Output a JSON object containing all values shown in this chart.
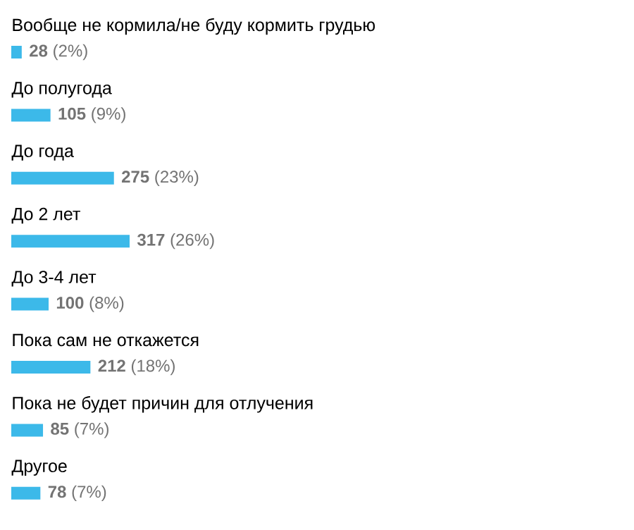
{
  "chart_data": {
    "type": "bar",
    "orientation": "horizontal",
    "color": "#3cb9e9",
    "categories": [
      "Вообще не кормила/не буду кормить грудью",
      "До полугода",
      "До года",
      "До 2 лет",
      "До 3-4 лет",
      "Пока сам не откажется",
      "Пока не будет причин для отлучения",
      "Другое"
    ],
    "values": [
      28,
      105,
      275,
      317,
      100,
      212,
      85,
      78
    ],
    "value_labels": [
      "**28** (2%)",
      "**105** (9%)",
      "**275** (23%)",
      "**317** (26%)",
      "**100** (8%)",
      "**212** (18%)",
      "**85** (7%)",
      "**78** (7%)"
    ]
  }
}
